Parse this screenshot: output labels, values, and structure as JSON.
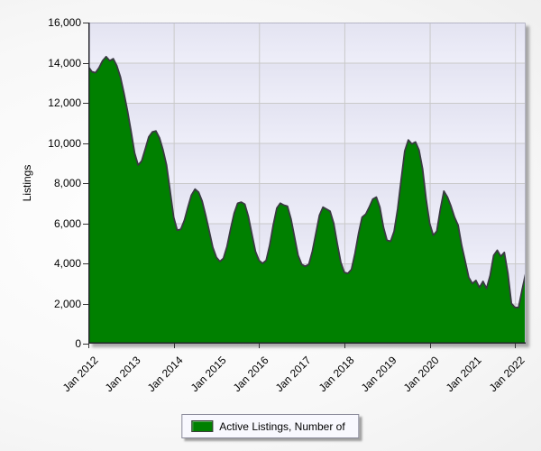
{
  "chart": {
    "y_axis_title": "Listings",
    "y_tick_labels": [
      "16,000",
      "14,000",
      "12,000",
      "10,000",
      "8,000",
      "6,000",
      "4,000",
      "2,000",
      "0"
    ],
    "x_tick_labels": [
      "Jan 2012",
      "Jan 2013",
      "Jan 2014",
      "Jan 2015",
      "Jan 2016",
      "Jan 2017",
      "Jan 2018",
      "Jan 2019",
      "Jan 2020",
      "Jan 2021",
      "Jan 2022"
    ],
    "gridline_years": [
      "Jan 2014",
      "Jan 2016",
      "Jan 2018",
      "Jan 2020",
      "Jan 2022"
    ]
  },
  "legend": {
    "label": "Active Listings, Number of",
    "swatch_color": "#008000"
  },
  "colors": {
    "series_fill": "#008000",
    "series_stroke": "#3a3a42",
    "gridline": "#c9c9c9",
    "axis_dark": "#26262e",
    "axis_light": "#b5b5c5",
    "plot_bg": "#e9e9f6"
  },
  "chart_data": {
    "type": "area",
    "title": "",
    "ylabel": "Listings",
    "series_name": "Active Listings, Number of",
    "ylim": [
      0,
      16000
    ],
    "y_tick_step": 2000,
    "grid": "on",
    "legend_position": "bottom-center",
    "x_unit": "month",
    "x": [
      "2012-01",
      "2012-02",
      "2012-03",
      "2012-04",
      "2012-05",
      "2012-06",
      "2012-07",
      "2012-08",
      "2012-09",
      "2012-10",
      "2012-11",
      "2012-12",
      "2013-01",
      "2013-02",
      "2013-03",
      "2013-04",
      "2013-05",
      "2013-06",
      "2013-07",
      "2013-08",
      "2013-09",
      "2013-10",
      "2013-11",
      "2013-12",
      "2014-01",
      "2014-02",
      "2014-03",
      "2014-04",
      "2014-05",
      "2014-06",
      "2014-07",
      "2014-08",
      "2014-09",
      "2014-10",
      "2014-11",
      "2014-12",
      "2015-01",
      "2015-02",
      "2015-03",
      "2015-04",
      "2015-05",
      "2015-06",
      "2015-07",
      "2015-08",
      "2015-09",
      "2015-10",
      "2015-11",
      "2015-12",
      "2016-01",
      "2016-02",
      "2016-03",
      "2016-04",
      "2016-05",
      "2016-06",
      "2016-07",
      "2016-08",
      "2016-09",
      "2016-10",
      "2016-11",
      "2016-12",
      "2017-01",
      "2017-02",
      "2017-03",
      "2017-04",
      "2017-05",
      "2017-06",
      "2017-07",
      "2017-08",
      "2017-09",
      "2017-10",
      "2017-11",
      "2017-12",
      "2018-01",
      "2018-02",
      "2018-03",
      "2018-04",
      "2018-05",
      "2018-06",
      "2018-07",
      "2018-08",
      "2018-09",
      "2018-10",
      "2018-11",
      "2018-12",
      "2019-01",
      "2019-02",
      "2019-03",
      "2019-04",
      "2019-05",
      "2019-06",
      "2019-07",
      "2019-08",
      "2019-09",
      "2019-10",
      "2019-11",
      "2019-12",
      "2020-01",
      "2020-02",
      "2020-03",
      "2020-04",
      "2020-05",
      "2020-06",
      "2020-07",
      "2020-08",
      "2020-09",
      "2020-10",
      "2020-11",
      "2020-12",
      "2021-01",
      "2021-02",
      "2021-03",
      "2021-04",
      "2021-05",
      "2021-06",
      "2021-07",
      "2021-08",
      "2021-09",
      "2021-10",
      "2021-11",
      "2021-12",
      "2022-01",
      "2022-02",
      "2022-03",
      "2022-04"
    ],
    "values": [
      13800,
      13550,
      13500,
      13750,
      14100,
      14300,
      14100,
      14200,
      13850,
      13300,
      12500,
      11600,
      10600,
      9500,
      8900,
      9100,
      9700,
      10300,
      10550,
      10600,
      10250,
      9650,
      8900,
      7600,
      6300,
      5650,
      5700,
      6150,
      6800,
      7400,
      7700,
      7550,
      7100,
      6400,
      5600,
      4800,
      4300,
      4100,
      4250,
      4850,
      5700,
      6500,
      7000,
      7050,
      6950,
      6350,
      5450,
      4600,
      4150,
      4000,
      4150,
      4900,
      5900,
      6750,
      7000,
      6900,
      6850,
      6200,
      5300,
      4400,
      3950,
      3850,
      3950,
      4600,
      5500,
      6400,
      6800,
      6700,
      6600,
      6000,
      5000,
      4050,
      3550,
      3500,
      3700,
      4500,
      5500,
      6300,
      6450,
      6800,
      7200,
      7300,
      6800,
      5800,
      5150,
      5100,
      5600,
      6700,
      8200,
      9600,
      10150,
      9950,
      10050,
      9650,
      8700,
      7200,
      6000,
      5400,
      5600,
      6700,
      7600,
      7300,
      6850,
      6300,
      5900,
      4900,
      4100,
      3300,
      3000,
      3150,
      2800,
      3100,
      2750,
      3400,
      4400,
      4650,
      4350,
      4550,
      3500,
      2000,
      1800,
      1800,
      2700,
      3500
    ]
  }
}
